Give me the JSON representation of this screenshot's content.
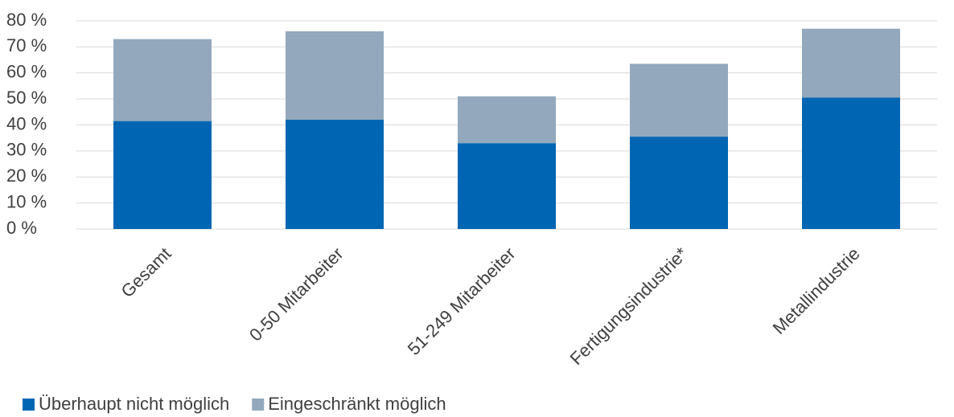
{
  "chart_data": {
    "type": "stacked_bar",
    "categories": [
      "Gesamt",
      "0-50 Mitarbeiter",
      "51-249 Mitarbeiter",
      "Fertigungsindustrie*",
      "Metallindustrie"
    ],
    "series": [
      {
        "name": "Überhaupt nicht möglich",
        "color": "#0066b3",
        "values": [
          41.5,
          42,
          33,
          35.5,
          50.5
        ]
      },
      {
        "name": "Eingeschränkt möglich",
        "color": "#93a8bc",
        "values": [
          31.5,
          34,
          18,
          28,
          26.5
        ]
      }
    ],
    "ylim": [
      0,
      80
    ],
    "yticks": [
      {
        "value": 0,
        "label": "0 %"
      },
      {
        "value": 10,
        "label": "10 %"
      },
      {
        "value": 20,
        "label": "20 %"
      },
      {
        "value": 30,
        "label": "30 %"
      },
      {
        "value": 40,
        "label": "40 %"
      },
      {
        "value": 50,
        "label": "50 %"
      },
      {
        "value": 60,
        "label": "60 %"
      },
      {
        "value": 70,
        "label": "70 %"
      },
      {
        "value": 80,
        "label": "80 %"
      }
    ],
    "grid": true,
    "legend": "bottom-left"
  }
}
